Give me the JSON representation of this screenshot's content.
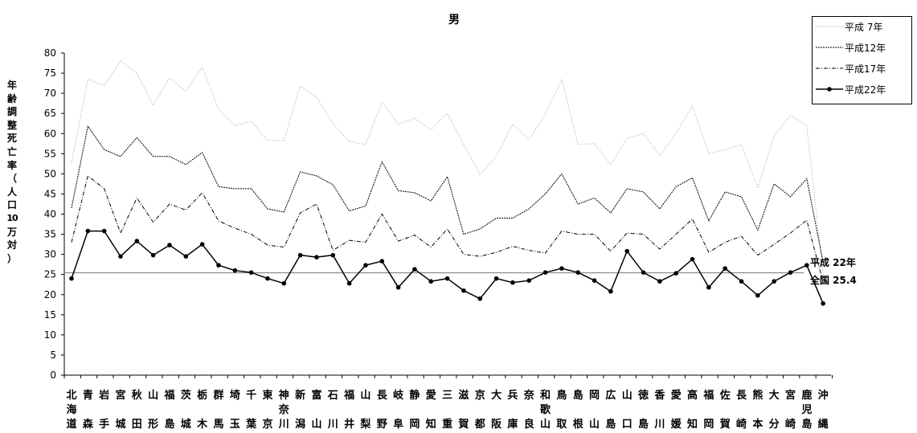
{
  "chart_data": {
    "type": "line",
    "title": "男",
    "ylabel": "年齢調整死亡率（人口10万対）",
    "ylim": [
      0,
      80
    ],
    "yticks": [
      0,
      5,
      10,
      15,
      20,
      25,
      30,
      35,
      40,
      45,
      50,
      55,
      60,
      65,
      70,
      75,
      80
    ],
    "grid": false,
    "legend_position": "top-right",
    "categories": [
      "北海道",
      "青森",
      "岩手",
      "宮城",
      "秋田",
      "山形",
      "福島",
      "茨城",
      "栃木",
      "群馬",
      "埼玉",
      "千葉",
      "東京",
      "神奈川",
      "新潟",
      "富山",
      "石川",
      "福井",
      "山梨",
      "長野",
      "岐阜",
      "静岡",
      "愛知",
      "三重",
      "滋賀",
      "京都",
      "大阪",
      "兵庫",
      "奈良",
      "和歌山",
      "鳥取",
      "島根",
      "岡山",
      "広島",
      "山口",
      "徳島",
      "香川",
      "愛媛",
      "高知",
      "福岡",
      "佐賀",
      "長崎",
      "熊本",
      "大分",
      "宮崎",
      "鹿児島",
      "沖縄"
    ],
    "series": [
      {
        "name": "平成 7年",
        "style": "dotted-light",
        "values": [
          52.5,
          73.5,
          72.0,
          78.0,
          75.0,
          67.0,
          73.8,
          70.5,
          76.5,
          66.0,
          62.0,
          63.0,
          58.3,
          58.3,
          71.8,
          69.0,
          62.5,
          58.0,
          57.3,
          67.8,
          62.3,
          63.8,
          61.0,
          65.0,
          57.3,
          49.8,
          54.3,
          62.3,
          58.5,
          64.8,
          73.5,
          57.3,
          57.5,
          52.3,
          58.8,
          60.0,
          54.5,
          60.0,
          67.0,
          55.0,
          56.0,
          57.2,
          46.5,
          59.5,
          64.5,
          62.0,
          25.0
        ]
      },
      {
        "name": "平成12年",
        "style": "dotted",
        "values": [
          41.5,
          61.8,
          56.0,
          54.3,
          59.0,
          54.3,
          54.3,
          52.3,
          55.3,
          46.8,
          46.3,
          46.3,
          41.3,
          40.5,
          50.5,
          49.5,
          47.3,
          40.8,
          42.0,
          53.0,
          45.8,
          45.3,
          43.3,
          49.3,
          35.0,
          36.3,
          39.0,
          39.0,
          41.3,
          45.0,
          50.0,
          42.5,
          44.0,
          40.3,
          46.3,
          45.5,
          41.3,
          46.8,
          49.0,
          38.3,
          45.5,
          44.3,
          36.0,
          47.5,
          44.3,
          48.8,
          28.0
        ]
      },
      {
        "name": "平成17年",
        "style": "dashdot",
        "values": [
          33.0,
          49.5,
          46.3,
          35.3,
          44.0,
          38.0,
          42.5,
          41.0,
          45.3,
          38.3,
          36.5,
          35.0,
          32.3,
          31.8,
          40.3,
          42.5,
          31.0,
          33.5,
          33.0,
          40.0,
          33.3,
          34.8,
          31.8,
          36.3,
          30.0,
          29.5,
          30.5,
          32.0,
          31.0,
          30.3,
          35.8,
          35.0,
          35.0,
          30.8,
          35.3,
          35.0,
          31.3,
          35.0,
          38.8,
          30.5,
          33.0,
          34.5,
          29.8,
          32.5,
          35.3,
          38.5,
          23.0
        ]
      },
      {
        "name": "平成22年",
        "style": "solid-marker",
        "values": [
          24.0,
          35.8,
          35.8,
          29.5,
          33.3,
          29.8,
          32.3,
          29.5,
          32.5,
          27.3,
          26.0,
          25.5,
          24.0,
          22.8,
          29.8,
          29.3,
          29.8,
          22.8,
          27.3,
          28.3,
          21.8,
          26.3,
          23.3,
          24.0,
          21.0,
          19.0,
          24.0,
          23.0,
          23.5,
          25.5,
          26.5,
          25.5,
          23.5,
          20.8,
          30.8,
          25.5,
          23.3,
          25.3,
          28.8,
          21.8,
          26.5,
          23.3,
          19.8,
          23.3,
          25.5,
          27.3,
          17.8
        ]
      }
    ],
    "national": {
      "value": 25.4,
      "label_line1": "平成 22年",
      "label_line2": "全国 25.4"
    }
  }
}
